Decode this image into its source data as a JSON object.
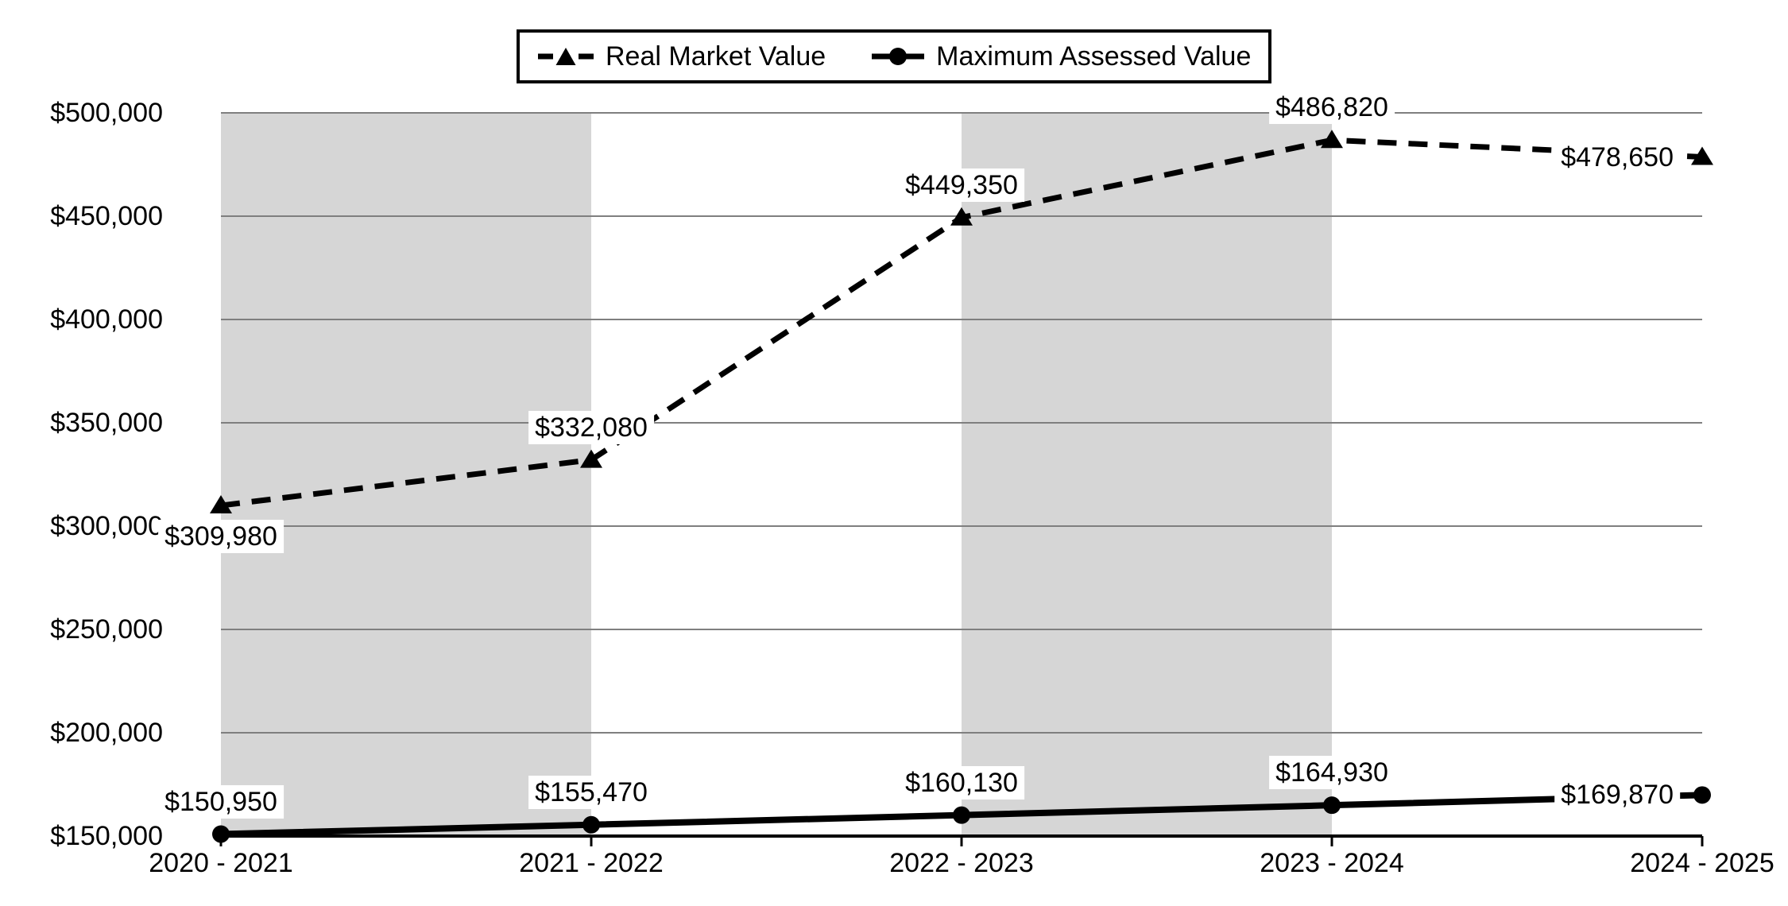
{
  "chart_data": {
    "type": "line",
    "categories": [
      "2020 - 2021",
      "2021 - 2022",
      "2022 - 2023",
      "2023 - 2024",
      "2024 - 2025"
    ],
    "series": [
      {
        "name": "Real Market Value",
        "values": [
          309980,
          332080,
          449350,
          486820,
          478650
        ],
        "labels": [
          "$309,980",
          "$332,080",
          "$449,350",
          "$486,820",
          "$478,650"
        ],
        "label_placement": [
          "below",
          "above",
          "above",
          "above",
          "left"
        ],
        "line_style": "dashed",
        "marker": "triangle",
        "color": "#000000"
      },
      {
        "name": "Maximum Assessed Value",
        "values": [
          150950,
          155470,
          160130,
          164930,
          169870
        ],
        "labels": [
          "$150,950",
          "$155,470",
          "$160,130",
          "$164,930",
          "$169,870"
        ],
        "label_placement": [
          "above",
          "above",
          "above",
          "above",
          "left"
        ],
        "line_style": "solid",
        "marker": "circle",
        "color": "#000000"
      }
    ],
    "y_axis": {
      "min": 150000,
      "max": 500000,
      "step": 50000,
      "tick_labels": [
        "$150,000",
        "$200,000",
        "$250,000",
        "$300,000",
        "$350,000",
        "$400,000",
        "$450,000",
        "$500,000"
      ]
    },
    "x_axis": {
      "tick_labels": [
        "2020 - 2021",
        "2021 - 2022",
        "2022 - 2023",
        "2023 - 2024",
        "2024 - 2025"
      ]
    },
    "legend": {
      "position": "top-center",
      "border": true
    },
    "grid": "horizontal",
    "plot_bands": {
      "between_categories": [
        [
          0,
          1
        ],
        [
          2,
          3
        ]
      ]
    },
    "colors": {
      "band": "#d6d6d6",
      "gridline": "#7f7f7f",
      "axis": "#000000",
      "series": "#000000",
      "label_background": "#ffffff",
      "text": "#000000"
    }
  }
}
